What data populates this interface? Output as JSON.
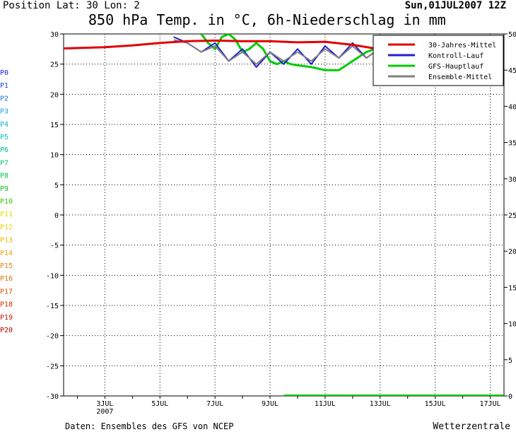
{
  "header": {
    "position_line": "Position   Lat: 30 Lon: 2",
    "datetime": "Sun,01JUL2007 12Z",
    "title": "850 hPa Temp. in °C, 6h-Niederschlag in mm"
  },
  "footer": {
    "source": "Daten: Ensembles des GFS von NCEP",
    "brand": "Wetterzentrale"
  },
  "colors": {
    "clim": "#e00000",
    "control": "#2020d0",
    "gfs": "#00cc00",
    "mean": "#808080"
  },
  "chart_data": {
    "type": "line",
    "ylim": [
      -30,
      30
    ],
    "y2lim": [
      0,
      50
    ],
    "yticks": [
      "30",
      "25",
      "20",
      "15",
      "10",
      "5",
      "0",
      "-5",
      "-10",
      "-15",
      "-20",
      "-25",
      "-30"
    ],
    "y2ticks": [
      "50",
      "45",
      "40",
      "35",
      "30",
      "25",
      "20",
      "15",
      "10",
      "5",
      "0"
    ],
    "xticks": [
      {
        "label": "3JUL",
        "day": 3
      },
      {
        "label": "5JUL",
        "day": 5
      },
      {
        "label": "7JUL",
        "day": 7
      },
      {
        "label": "9JUL",
        "day": 9
      },
      {
        "label": "11JUL",
        "day": 11
      },
      {
        "label": "13JUL",
        "day": 13
      },
      {
        "label": "15JUL",
        "day": 15
      },
      {
        "label": "17JUL",
        "day": 17
      }
    ],
    "xlim_days": [
      1.5,
      17.5
    ],
    "year_label": "2007",
    "grid": true,
    "legend": {
      "placement": "top-right",
      "entries": [
        {
          "label": "30-Jahres-Mittel",
          "key": "clim"
        },
        {
          "label": "Kontroll-Lauf",
          "key": "control"
        },
        {
          "label": "GFS-Hauptlauf",
          "key": "gfs"
        },
        {
          "label": "Ensemble-Mittel",
          "key": "mean"
        }
      ]
    },
    "members": [
      {
        "label": "P0",
        "color": "#2020d0"
      },
      {
        "label": "P1",
        "color": "#2a40e0"
      },
      {
        "label": "P2",
        "color": "#2070e0"
      },
      {
        "label": "P3",
        "color": "#10a0e0"
      },
      {
        "label": "P4",
        "color": "#00b8c8"
      },
      {
        "label": "P5",
        "color": "#00c8c8"
      },
      {
        "label": "P6",
        "color": "#00b8a0"
      },
      {
        "label": "P7",
        "color": "#00c080"
      },
      {
        "label": "P8",
        "color": "#00c050"
      },
      {
        "label": "P9",
        "color": "#10c020"
      },
      {
        "label": "P10",
        "color": "#40c000"
      },
      {
        "label": "P11",
        "color": "#e0e000"
      },
      {
        "label": "P12",
        "color": "#e8d000"
      },
      {
        "label": "P13",
        "color": "#e8b800"
      },
      {
        "label": "P14",
        "color": "#e8a000"
      },
      {
        "label": "P15",
        "color": "#e08800"
      },
      {
        "label": "P16",
        "color": "#d87000"
      },
      {
        "label": "P17",
        "color": "#d05000"
      },
      {
        "label": "P18",
        "color": "#c83000"
      },
      {
        "label": "P19",
        "color": "#c01800"
      },
      {
        "label": "P20",
        "color": "#b00000"
      }
    ],
    "series": [
      {
        "name": "30-Jahres-Mittel",
        "key": "clim",
        "x": [
          1.5,
          3,
          4,
          5,
          6,
          7,
          8,
          9,
          10,
          11,
          12,
          12.8
        ],
        "values": [
          27.6,
          27.8,
          28.1,
          28.5,
          28.8,
          28.9,
          28.8,
          28.8,
          28.6,
          28.7,
          28.2,
          27.6
        ]
      },
      {
        "name": "GFS-Hauptlauf",
        "key": "gfs",
        "x": [
          6.5,
          6.75,
          7.0,
          7.25,
          7.5,
          7.75,
          8.0,
          8.25,
          8.5,
          8.75,
          9.0,
          9.25,
          9.5,
          9.75,
          10.0,
          10.5,
          11.0,
          11.5,
          12.0,
          12.5,
          12.8
        ],
        "values": [
          30.0,
          28.5,
          27.5,
          29.5,
          30.0,
          29.0,
          27.0,
          27.5,
          28.5,
          27.5,
          25.5,
          25.0,
          25.5,
          25.0,
          24.8,
          24.5,
          24.0,
          24.0,
          25.5,
          27.0,
          27.5
        ]
      },
      {
        "name": "Kontroll-Lauf",
        "key": "control",
        "x": [
          5.5,
          6.0,
          6.5,
          7.0,
          7.5,
          8.0,
          8.5,
          9.0,
          9.5,
          10.0,
          10.5,
          11.0,
          11.5,
          12.0,
          12.5,
          12.8
        ],
        "values": [
          29.5,
          28.5,
          27.0,
          28.5,
          25.5,
          27.5,
          24.5,
          27.0,
          25.0,
          27.5,
          25.0,
          28.0,
          26.0,
          28.5,
          26.0,
          27.0
        ]
      },
      {
        "name": "Ensemble-Mittel",
        "key": "mean",
        "x": [
          5.5,
          6.0,
          6.5,
          7.0,
          7.5,
          8.0,
          8.5,
          9.0,
          9.5,
          10.0,
          10.5,
          11.0,
          11.5,
          12.0,
          12.5,
          12.8
        ],
        "values": [
          29.0,
          28.5,
          27.0,
          28.0,
          25.5,
          27.0,
          25.0,
          27.0,
          25.5,
          27.0,
          25.5,
          27.5,
          26.0,
          28.0,
          26.0,
          27.0
        ]
      }
    ],
    "precip_gfs_mm": {
      "x": [
        9.5,
        17.5
      ],
      "values": [
        0,
        0
      ]
    }
  }
}
